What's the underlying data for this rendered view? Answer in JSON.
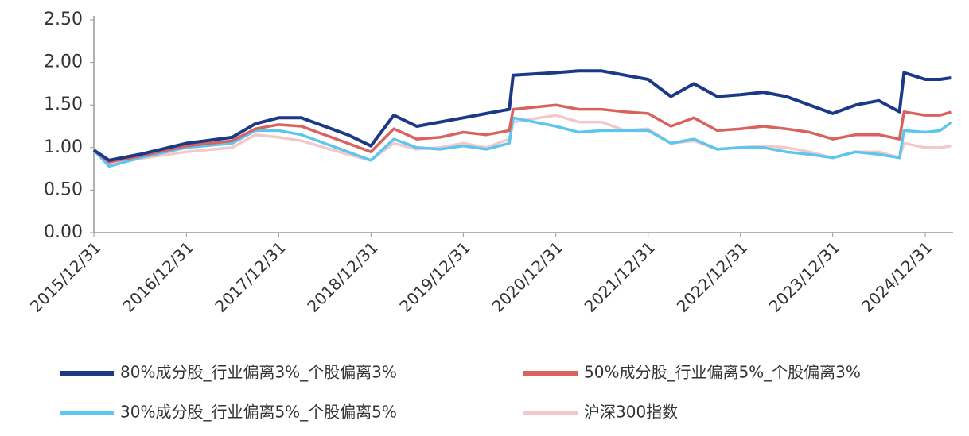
{
  "chart_data": {
    "type": "line",
    "x": [
      "2015/12/31",
      "2016/02/29",
      "2016/06/30",
      "2016/12/31",
      "2017/06/30",
      "2017/09/30",
      "2017/12/31",
      "2018/03/31",
      "2018/06/30",
      "2018/09/30",
      "2018/12/31",
      "2019/03/31",
      "2019/06/30",
      "2019/09/30",
      "2019/12/31",
      "2020/03/31",
      "2020/06/30",
      "2020/07/15",
      "2020/12/31",
      "2021/03/31",
      "2021/06/30",
      "2021/09/30",
      "2021/12/31",
      "2022/03/31",
      "2022/06/30",
      "2022/09/30",
      "2022/12/31",
      "2023/03/31",
      "2023/06/30",
      "2023/09/30",
      "2023/12/31",
      "2024/03/31",
      "2024/06/30",
      "2024/09/20",
      "2024/10/08",
      "2024/12/31",
      "2025/02/28",
      "2025/04/15"
    ],
    "series": [
      {
        "name": "80%成分股_行业偏离3%_个股偏离3%",
        "color": "#1b3987",
        "values": [
          0.97,
          0.85,
          0.92,
          1.05,
          1.12,
          1.28,
          1.35,
          1.35,
          1.25,
          1.15,
          1.02,
          1.38,
          1.25,
          1.3,
          1.35,
          1.4,
          1.45,
          1.85,
          1.88,
          1.9,
          1.9,
          1.85,
          1.8,
          1.6,
          1.75,
          1.6,
          1.62,
          1.65,
          1.6,
          1.5,
          1.4,
          1.5,
          1.55,
          1.42,
          1.88,
          1.8,
          1.8,
          1.82
        ]
      },
      {
        "name": "50%成分股_行业偏离5%_个股偏离3%",
        "color": "#d9625e",
        "values": [
          0.97,
          0.83,
          0.9,
          1.02,
          1.08,
          1.22,
          1.27,
          1.25,
          1.15,
          1.05,
          0.95,
          1.22,
          1.1,
          1.12,
          1.18,
          1.15,
          1.2,
          1.45,
          1.5,
          1.45,
          1.45,
          1.42,
          1.4,
          1.25,
          1.35,
          1.2,
          1.22,
          1.25,
          1.22,
          1.18,
          1.1,
          1.15,
          1.15,
          1.1,
          1.42,
          1.38,
          1.38,
          1.42
        ]
      },
      {
        "name": "30%成分股_行业偏离5%_个股偏离5%",
        "color": "#5cc6ee",
        "values": [
          0.97,
          0.78,
          0.88,
          1.0,
          1.05,
          1.2,
          1.2,
          1.15,
          1.05,
          0.95,
          0.85,
          1.1,
          1.0,
          0.98,
          1.02,
          0.98,
          1.05,
          1.35,
          1.25,
          1.18,
          1.2,
          1.2,
          1.2,
          1.05,
          1.1,
          0.98,
          1.0,
          1.0,
          0.95,
          0.92,
          0.88,
          0.95,
          0.92,
          0.88,
          1.2,
          1.18,
          1.2,
          1.3
        ]
      },
      {
        "name": "沪深300指数",
        "color": "#f3c8ca",
        "values": [
          0.97,
          0.8,
          0.87,
          0.95,
          1.0,
          1.15,
          1.12,
          1.08,
          1.0,
          0.92,
          0.85,
          1.05,
          0.98,
          1.0,
          1.05,
          1.0,
          1.1,
          1.3,
          1.38,
          1.3,
          1.3,
          1.2,
          1.22,
          1.05,
          1.08,
          0.98,
          1.0,
          1.02,
          1.0,
          0.95,
          0.88,
          0.95,
          0.95,
          0.88,
          1.05,
          1.0,
          1.0,
          1.02
        ]
      }
    ],
    "xlim": [
      "2015/12/31",
      "2025/04/20"
    ],
    "xticks": [
      "2015/12/31",
      "2016/12/31",
      "2017/12/31",
      "2018/12/31",
      "2019/12/31",
      "2020/12/31",
      "2021/12/31",
      "2022/12/31",
      "2023/12/31",
      "2024/12/31"
    ],
    "ylim": [
      0,
      2.5
    ],
    "yticks": [
      {
        "value": 0,
        "label": "0.00"
      },
      {
        "value": 0.5,
        "label": "0.50"
      },
      {
        "value": 1,
        "label": "1.00"
      },
      {
        "value": 1.5,
        "label": "1.50"
      },
      {
        "value": 2,
        "label": "2.00"
      },
      {
        "value": 2.5,
        "label": "2.50"
      }
    ]
  }
}
